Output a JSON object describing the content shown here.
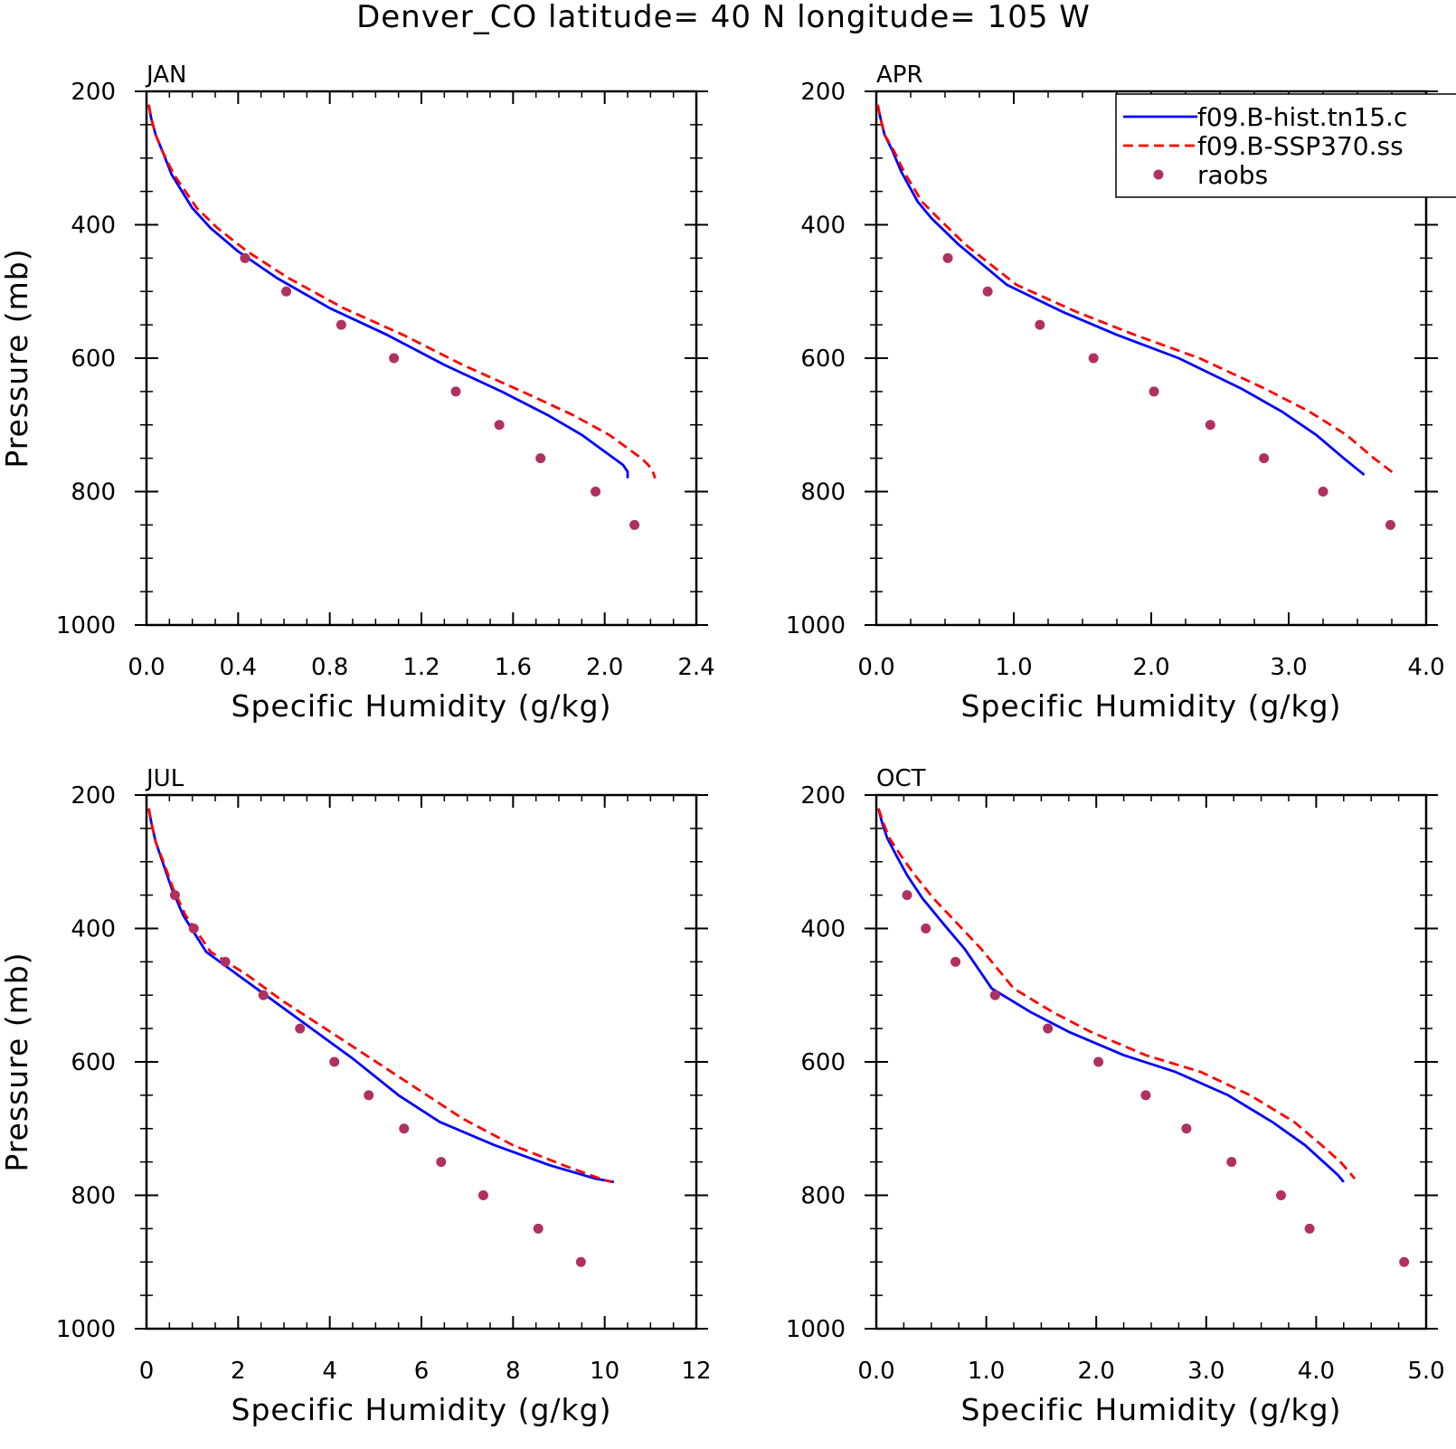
{
  "title": "Denver_CO  latitude= 40 N longitude= 105 W",
  "legend": {
    "entries": [
      {
        "label": "f09.B-hist.tn15.c",
        "style": "solid",
        "color": "#0000ff"
      },
      {
        "label": "f09.B-SSP370.ss",
        "style": "dashed",
        "color": "#ff0000"
      },
      {
        "label": "raobs",
        "style": "marker",
        "color": "#b03060"
      }
    ]
  },
  "colors": {
    "hist": "#0000ff",
    "ssp": "#ff0000",
    "raobs": "#b03060"
  },
  "chart_data": [
    {
      "type": "line",
      "panel_label": "JAN",
      "xlabel": "Specific Humidity (g/kg)",
      "ylabel": "Pressure (mb)",
      "xlim": [
        0,
        2.4
      ],
      "ylim": [
        200,
        1000
      ],
      "y_inverted": true,
      "xticks": [
        0,
        0.4,
        0.8,
        1.2,
        1.6,
        2.0,
        2.4
      ],
      "xtick_labels": [
        "0.0",
        "0.4",
        "0.8",
        "1.2",
        "1.6",
        "2.0",
        "2.4"
      ],
      "yticks": [
        200,
        400,
        600,
        800,
        1000
      ],
      "ytick_labels": [
        "200",
        "400",
        "600",
        "800",
        "1000"
      ],
      "series": [
        {
          "name": "f09.B-hist.tn15.c",
          "x": [
            0.01,
            0.02,
            0.04,
            0.07,
            0.11,
            0.2,
            0.28,
            0.4,
            0.57,
            0.8,
            1.05,
            1.3,
            1.55,
            1.75,
            1.9,
            1.98,
            2.04,
            2.08,
            2.1,
            2.1
          ],
          "y": [
            220,
            240,
            265,
            290,
            325,
            375,
            405,
            440,
            480,
            525,
            565,
            610,
            650,
            685,
            715,
            735,
            750,
            760,
            770,
            780
          ]
        },
        {
          "name": "f09.B-SSP370.ss",
          "x": [
            0.01,
            0.02,
            0.04,
            0.07,
            0.12,
            0.22,
            0.31,
            0.44,
            0.62,
            0.86,
            1.12,
            1.38,
            1.64,
            1.86,
            2.02,
            2.1,
            2.16,
            2.19,
            2.21,
            2.22
          ],
          "y": [
            220,
            240,
            265,
            290,
            325,
            375,
            405,
            440,
            480,
            525,
            565,
            610,
            650,
            685,
            715,
            735,
            750,
            760,
            770,
            780
          ]
        },
        {
          "name": "raobs",
          "x": [
            0.43,
            0.61,
            0.85,
            1.08,
            1.35,
            1.54,
            1.72,
            1.96,
            2.13
          ],
          "y": [
            450,
            500,
            550,
            600,
            650,
            700,
            750,
            800,
            850
          ]
        }
      ]
    },
    {
      "type": "line",
      "panel_label": "APR",
      "xlabel": "Specific Humidity (g/kg)",
      "ylabel": "",
      "xlim": [
        0,
        4.0
      ],
      "ylim": [
        200,
        1000
      ],
      "y_inverted": true,
      "xticks": [
        0,
        1,
        2,
        3,
        4
      ],
      "xtick_labels": [
        "0.0",
        "1.0",
        "2.0",
        "3.0",
        "4.0"
      ],
      "yticks": [
        200,
        400,
        600,
        800,
        1000
      ],
      "ytick_labels": [
        "200",
        "400",
        "600",
        "800",
        "1000"
      ],
      "series": [
        {
          "name": "f09.B-hist.tn15.c",
          "x": [
            0.01,
            0.03,
            0.06,
            0.12,
            0.18,
            0.3,
            0.4,
            0.6,
            0.95,
            1.35,
            1.75,
            2.2,
            2.65,
            2.95,
            3.2,
            3.4,
            3.55
          ],
          "y": [
            220,
            240,
            265,
            290,
            320,
            365,
            390,
            430,
            490,
            530,
            565,
            600,
            645,
            680,
            715,
            750,
            775
          ]
        },
        {
          "name": "f09.B-SSP370.ss",
          "x": [
            0.01,
            0.03,
            0.06,
            0.13,
            0.2,
            0.33,
            0.45,
            0.65,
            1.02,
            1.45,
            1.88,
            2.35,
            2.82,
            3.15,
            3.42,
            3.62,
            3.78
          ],
          "y": [
            220,
            240,
            265,
            290,
            320,
            365,
            390,
            430,
            490,
            530,
            565,
            600,
            645,
            680,
            715,
            750,
            775
          ]
        },
        {
          "name": "raobs",
          "x": [
            0.52,
            0.81,
            1.19,
            1.58,
            2.02,
            2.43,
            2.82,
            3.25,
            3.74
          ],
          "y": [
            450,
            500,
            550,
            600,
            650,
            700,
            750,
            800,
            850
          ]
        }
      ]
    },
    {
      "type": "line",
      "panel_label": "JUL",
      "xlabel": "Specific Humidity (g/kg)",
      "ylabel": "Pressure (mb)",
      "xlim": [
        0,
        12
      ],
      "ylim": [
        200,
        1000
      ],
      "y_inverted": true,
      "xticks": [
        0,
        2,
        4,
        6,
        8,
        10,
        12
      ],
      "xtick_labels": [
        "0",
        "2",
        "4",
        "6",
        "8",
        "10",
        "12"
      ],
      "yticks": [
        200,
        400,
        600,
        800,
        1000
      ],
      "ytick_labels": [
        "200",
        "400",
        "600",
        "800",
        "1000"
      ],
      "series": [
        {
          "name": "f09.B-hist.tn15.c",
          "x": [
            0.05,
            0.1,
            0.2,
            0.35,
            0.55,
            0.8,
            1.3,
            2.0,
            2.8,
            3.6,
            4.5,
            5.5,
            6.4,
            7.6,
            8.8,
            9.8,
            10.2
          ],
          "y": [
            220,
            240,
            270,
            300,
            340,
            380,
            435,
            470,
            510,
            550,
            595,
            650,
            690,
            725,
            755,
            775,
            780
          ]
        },
        {
          "name": "f09.B-SSP370.ss",
          "x": [
            0.05,
            0.1,
            0.2,
            0.37,
            0.58,
            0.85,
            1.4,
            2.2,
            3.0,
            3.9,
            4.9,
            5.9,
            6.9,
            8.0,
            9.1,
            9.9,
            10.15
          ],
          "y": [
            220,
            240,
            270,
            300,
            340,
            380,
            435,
            470,
            510,
            550,
            595,
            640,
            685,
            725,
            755,
            775,
            780
          ]
        },
        {
          "name": "raobs",
          "x": [
            0.62,
            1.03,
            1.72,
            2.55,
            3.35,
            4.1,
            4.85,
            5.62,
            6.43,
            7.35,
            8.55,
            9.48
          ],
          "y": [
            350,
            400,
            450,
            500,
            550,
            600,
            650,
            700,
            750,
            800,
            850,
            900
          ]
        }
      ]
    },
    {
      "type": "line",
      "panel_label": "OCT",
      "xlabel": "Specific Humidity (g/kg)",
      "ylabel": "",
      "xlim": [
        0,
        5.0
      ],
      "ylim": [
        200,
        1000
      ],
      "y_inverted": true,
      "xticks": [
        0,
        1,
        2,
        3,
        4,
        5
      ],
      "xtick_labels": [
        "0.0",
        "1.0",
        "2.0",
        "3.0",
        "4.0",
        "5.0"
      ],
      "yticks": [
        200,
        400,
        600,
        800,
        1000
      ],
      "ytick_labels": [
        "200",
        "400",
        "600",
        "800",
        "1000"
      ],
      "series": [
        {
          "name": "f09.B-hist.tn15.c",
          "x": [
            0.02,
            0.05,
            0.1,
            0.18,
            0.28,
            0.42,
            0.62,
            0.8,
            1.05,
            1.4,
            1.75,
            2.25,
            2.72,
            3.2,
            3.6,
            3.9,
            4.1,
            4.2,
            4.25
          ],
          "y": [
            220,
            240,
            265,
            290,
            320,
            355,
            395,
            430,
            490,
            525,
            555,
            590,
            615,
            650,
            690,
            725,
            755,
            770,
            780
          ]
        },
        {
          "name": "f09.B-SSP370.ss",
          "x": [
            0.02,
            0.06,
            0.12,
            0.22,
            0.35,
            0.52,
            0.75,
            0.95,
            1.25,
            1.6,
            1.95,
            2.45,
            2.95,
            3.4,
            3.8,
            4.05,
            4.22,
            4.3,
            4.35
          ],
          "y": [
            220,
            240,
            265,
            290,
            320,
            355,
            395,
            430,
            490,
            525,
            555,
            590,
            615,
            650,
            690,
            725,
            750,
            765,
            775
          ]
        },
        {
          "name": "raobs",
          "x": [
            0.28,
            0.45,
            0.72,
            1.08,
            1.56,
            2.02,
            2.45,
            2.82,
            3.23,
            3.68,
            3.94,
            4.8
          ],
          "y": [
            350,
            400,
            450,
            500,
            550,
            600,
            650,
            700,
            750,
            800,
            850,
            900
          ]
        }
      ]
    }
  ]
}
